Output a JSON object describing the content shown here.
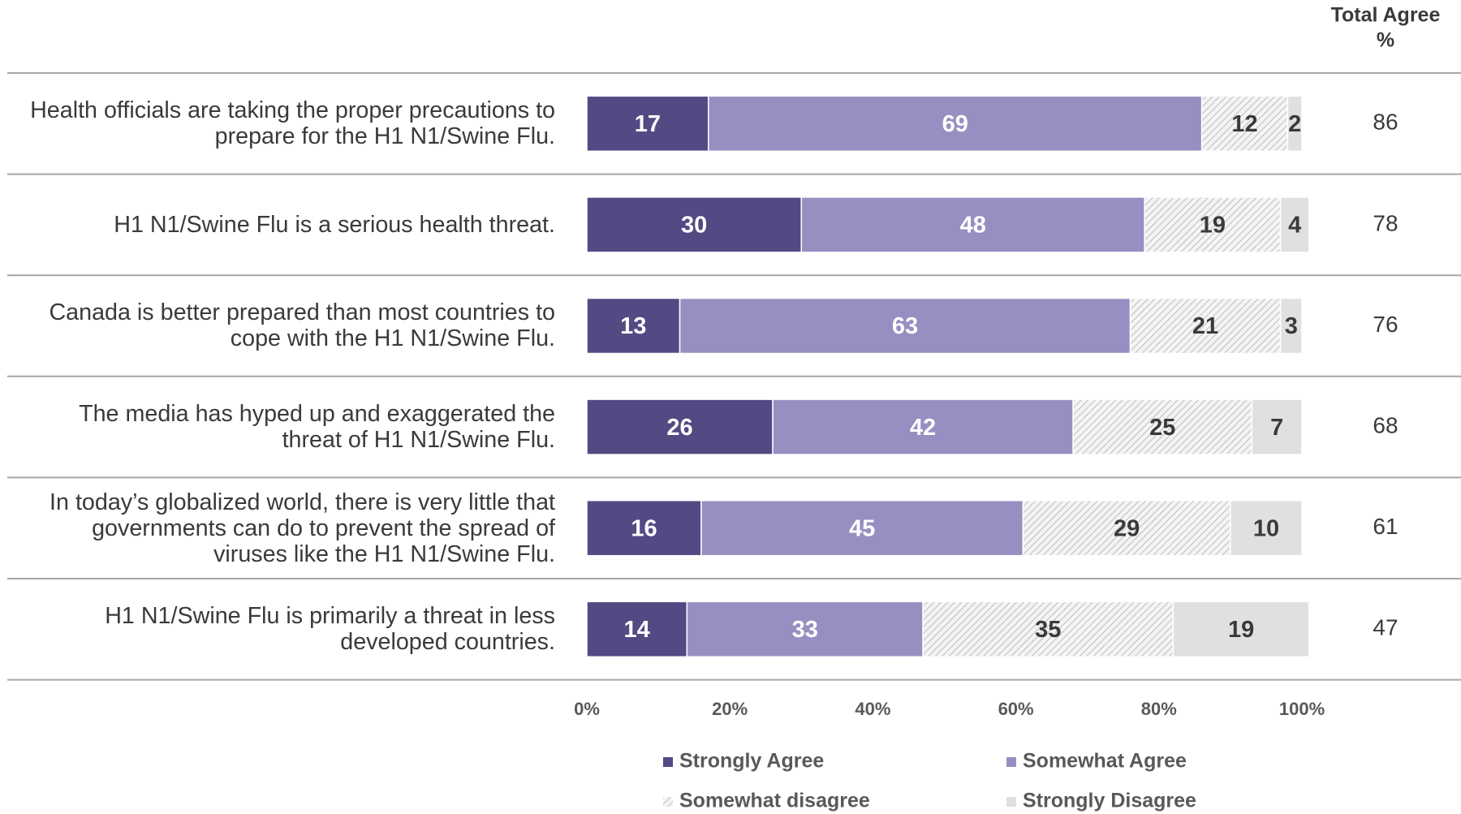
{
  "chart_data": {
    "type": "stacked-bar-horizontal",
    "categories": [
      "Health officials are taking the proper precautions to prepare for the H1 N1/Swine Flu.",
      "H1 N1/Swine Flu is a serious health threat.",
      "Canada is better prepared than most countries to cope with the H1 N1/Swine Flu.",
      "The media has hyped up and exaggerated the threat of H1 N1/Swine Flu.",
      "In today’s globalized world, there is very little that governments can do to prevent the spread of viruses like the H1 N1/Swine Flu.",
      "H1 N1/Swine Flu is primarily a threat in less developed countries."
    ],
    "series": [
      {
        "name": "Strongly Agree",
        "color": "#534a84",
        "label_color": "#ffffff",
        "values": [
          17,
          30,
          13,
          26,
          16,
          14
        ]
      },
      {
        "name": "Somewhat Agree",
        "color": "#978fc1",
        "label_color": "#ffffff",
        "values": [
          69,
          48,
          63,
          42,
          45,
          33
        ]
      },
      {
        "name": "Somewhat disagree",
        "color": "#bdbdbd",
        "pattern": "hatch",
        "label_color": "#3a3a3a",
        "values": [
          12,
          19,
          21,
          25,
          29,
          35
        ]
      },
      {
        "name": "Strongly Disagree",
        "color": "#e0e0e0",
        "label_color": "#3a3a3a",
        "values": [
          2,
          4,
          3,
          7,
          10,
          19
        ]
      }
    ],
    "totals": {
      "header": [
        "Total Agree",
        "%"
      ],
      "values": [
        86,
        78,
        76,
        68,
        61,
        47
      ]
    },
    "xlim": [
      0,
      100
    ],
    "xticks": [
      {
        "value": 0,
        "label": "0%"
      },
      {
        "value": 20,
        "label": "20%"
      },
      {
        "value": 40,
        "label": "40%"
      },
      {
        "value": 60,
        "label": "60%"
      },
      {
        "value": 80,
        "label": "80%"
      },
      {
        "value": 100,
        "label": "100%"
      }
    ]
  }
}
